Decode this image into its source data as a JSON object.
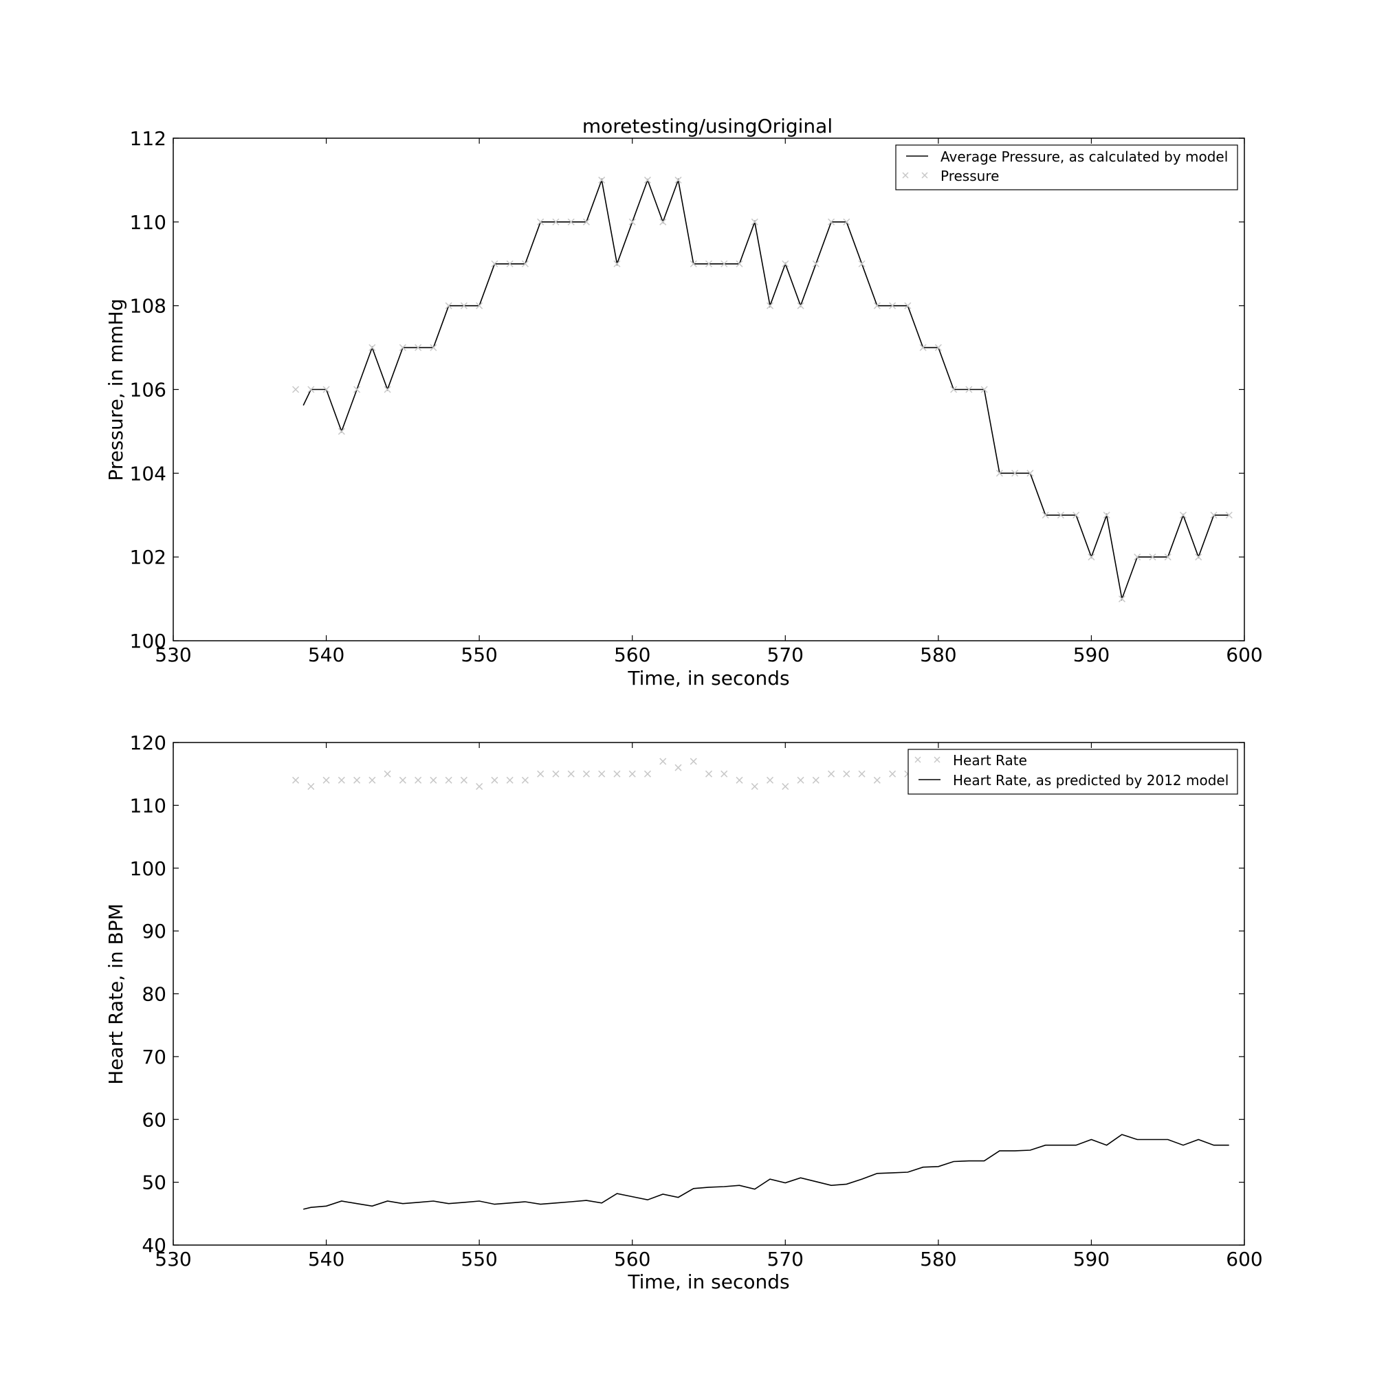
{
  "chart_data": [
    {
      "type": "line",
      "title": "moretesting/usingOriginal",
      "xlabel": "Time, in seconds",
      "ylabel": "Pressure, in mmHg",
      "xlim": [
        530,
        600
      ],
      "ylim": [
        100,
        112
      ],
      "xticks": [
        "530",
        "540",
        "550",
        "560",
        "570",
        "580",
        "590",
        "600"
      ],
      "yticks": [
        "100",
        "102",
        "104",
        "106",
        "108",
        "110",
        "112"
      ],
      "grid": false,
      "legend_position": "top-right",
      "series": [
        {
          "name": "Average Pressure, as calculated by model",
          "style": "line",
          "color": "#000000",
          "points": [
            [
              538.5,
              105.62
            ],
            [
              539,
              106
            ],
            [
              540,
              106
            ],
            [
              541,
              105
            ],
            [
              542,
              106
            ],
            [
              543,
              107
            ],
            [
              544,
              106
            ],
            [
              545,
              107
            ],
            [
              546,
              107
            ],
            [
              547,
              107
            ],
            [
              548,
              108
            ],
            [
              549,
              108
            ],
            [
              550,
              108
            ],
            [
              551,
              109
            ],
            [
              552,
              109
            ],
            [
              553,
              109
            ],
            [
              554,
              110
            ],
            [
              555,
              110
            ],
            [
              556,
              110
            ],
            [
              557,
              110
            ],
            [
              558,
              111
            ],
            [
              559,
              109
            ],
            [
              560,
              110
            ],
            [
              561,
              111
            ],
            [
              562,
              110
            ],
            [
              563,
              111
            ],
            [
              564,
              109
            ],
            [
              565,
              109
            ],
            [
              566,
              109
            ],
            [
              567,
              109
            ],
            [
              568,
              110
            ],
            [
              569,
              108
            ],
            [
              570,
              109
            ],
            [
              571,
              108
            ],
            [
              572,
              109
            ],
            [
              573,
              110
            ],
            [
              574,
              110
            ],
            [
              575,
              109
            ],
            [
              576,
              108
            ],
            [
              577,
              108
            ],
            [
              578,
              108
            ],
            [
              579,
              107
            ],
            [
              580,
              107
            ],
            [
              581,
              106
            ],
            [
              582,
              106
            ],
            [
              583,
              106
            ],
            [
              584,
              104
            ],
            [
              585,
              104
            ],
            [
              586,
              104
            ],
            [
              587,
              103
            ],
            [
              588,
              103
            ],
            [
              589,
              103
            ],
            [
              590,
              102
            ],
            [
              591,
              103
            ],
            [
              592,
              101
            ],
            [
              593,
              102
            ],
            [
              594,
              102
            ],
            [
              595,
              102
            ],
            [
              596,
              103
            ],
            [
              597,
              102
            ],
            [
              598,
              103
            ],
            [
              599,
              103
            ]
          ]
        },
        {
          "name": "Pressure",
          "style": "x-markers",
          "color": "#c8c8c8",
          "points": [
            [
              538,
              106
            ],
            [
              539,
              106
            ],
            [
              540,
              106
            ],
            [
              541,
              105
            ],
            [
              542,
              106
            ],
            [
              543,
              107
            ],
            [
              544,
              106
            ],
            [
              545,
              107
            ],
            [
              546,
              107
            ],
            [
              547,
              107
            ],
            [
              548,
              108
            ],
            [
              549,
              108
            ],
            [
              550,
              108
            ],
            [
              551,
              109
            ],
            [
              552,
              109
            ],
            [
              553,
              109
            ],
            [
              554,
              110
            ],
            [
              555,
              110
            ],
            [
              556,
              110
            ],
            [
              557,
              110
            ],
            [
              558,
              111
            ],
            [
              559,
              109
            ],
            [
              560,
              110
            ],
            [
              561,
              111
            ],
            [
              562,
              110
            ],
            [
              563,
              111
            ],
            [
              564,
              109
            ],
            [
              565,
              109
            ],
            [
              566,
              109
            ],
            [
              567,
              109
            ],
            [
              568,
              110
            ],
            [
              569,
              108
            ],
            [
              570,
              109
            ],
            [
              571,
              108
            ],
            [
              572,
              109
            ],
            [
              573,
              110
            ],
            [
              574,
              110
            ],
            [
              575,
              109
            ],
            [
              576,
              108
            ],
            [
              577,
              108
            ],
            [
              578,
              108
            ],
            [
              579,
              107
            ],
            [
              580,
              107
            ],
            [
              581,
              106
            ],
            [
              582,
              106
            ],
            [
              583,
              106
            ],
            [
              584,
              104
            ],
            [
              585,
              104
            ],
            [
              586,
              104
            ],
            [
              587,
              103
            ],
            [
              588,
              103
            ],
            [
              589,
              103
            ],
            [
              590,
              102
            ],
            [
              591,
              103
            ],
            [
              592,
              101
            ],
            [
              593,
              102
            ],
            [
              594,
              102
            ],
            [
              595,
              102
            ],
            [
              596,
              103
            ],
            [
              597,
              102
            ],
            [
              598,
              103
            ],
            [
              599,
              103
            ]
          ]
        }
      ]
    },
    {
      "type": "line",
      "title": "",
      "xlabel": "Time, in seconds",
      "ylabel": "Heart Rate, in BPM",
      "xlim": [
        530,
        600
      ],
      "ylim": [
        40,
        120
      ],
      "xticks": [
        "530",
        "540",
        "550",
        "560",
        "570",
        "580",
        "590",
        "600"
      ],
      "yticks": [
        "40",
        "50",
        "60",
        "70",
        "80",
        "90",
        "100",
        "110",
        "120"
      ],
      "grid": false,
      "legend_position": "top-right",
      "series": [
        {
          "name": "Heart Rate",
          "style": "x-markers",
          "color": "#c8c8c8",
          "points": [
            [
              538,
              114
            ],
            [
              539,
              113
            ],
            [
              540,
              114
            ],
            [
              541,
              114
            ],
            [
              542,
              114
            ],
            [
              543,
              114
            ],
            [
              544,
              115
            ],
            [
              545,
              114
            ],
            [
              546,
              114
            ],
            [
              547,
              114
            ],
            [
              548,
              114
            ],
            [
              549,
              114
            ],
            [
              550,
              113
            ],
            [
              551,
              114
            ],
            [
              552,
              114
            ],
            [
              553,
              114
            ],
            [
              554,
              115
            ],
            [
              555,
              115
            ],
            [
              556,
              115
            ],
            [
              557,
              115
            ],
            [
              558,
              115
            ],
            [
              559,
              115
            ],
            [
              560,
              115
            ],
            [
              561,
              115
            ],
            [
              562,
              117
            ],
            [
              563,
              116
            ],
            [
              564,
              117
            ],
            [
              565,
              115
            ],
            [
              566,
              115
            ],
            [
              567,
              114
            ],
            [
              568,
              113
            ],
            [
              569,
              114
            ],
            [
              570,
              113
            ],
            [
              571,
              114
            ],
            [
              572,
              114
            ],
            [
              573,
              115
            ],
            [
              574,
              115
            ],
            [
              575,
              115
            ],
            [
              576,
              114
            ],
            [
              577,
              115
            ],
            [
              578,
              115
            ]
          ]
        },
        {
          "name": "Heart Rate, as predicted by 2012 model",
          "style": "line",
          "color": "#000000",
          "points": [
            [
              538.5,
              45.7
            ],
            [
              539,
              46
            ],
            [
              540,
              46.2
            ],
            [
              541,
              47
            ],
            [
              542,
              46.6
            ],
            [
              543,
              46.2
            ],
            [
              544,
              47
            ],
            [
              545,
              46.6
            ],
            [
              546,
              46.8
            ],
            [
              547,
              47
            ],
            [
              548,
              46.6
            ],
            [
              549,
              46.8
            ],
            [
              550,
              47
            ],
            [
              551,
              46.5
            ],
            [
              552,
              46.7
            ],
            [
              553,
              46.9
            ],
            [
              554,
              46.5
            ],
            [
              555,
              46.7
            ],
            [
              556,
              46.9
            ],
            [
              557,
              47.1
            ],
            [
              558,
              46.7
            ],
            [
              559,
              48.2
            ],
            [
              560,
              47.7
            ],
            [
              561,
              47.2
            ],
            [
              562,
              48.1
            ],
            [
              563,
              47.6
            ],
            [
              564,
              49
            ],
            [
              565,
              49.2
            ],
            [
              566,
              49.3
            ],
            [
              567,
              49.5
            ],
            [
              568,
              48.9
            ],
            [
              569,
              50.5
            ],
            [
              570,
              49.9
            ],
            [
              571,
              50.7
            ],
            [
              572,
              50.1
            ],
            [
              573,
              49.5
            ],
            [
              574,
              49.7
            ],
            [
              575,
              50.5
            ],
            [
              576,
              51.4
            ],
            [
              577,
              51.5
            ],
            [
              578,
              51.6
            ],
            [
              579,
              52.4
            ],
            [
              580,
              52.5
            ],
            [
              581,
              53.3
            ],
            [
              582,
              53.4
            ],
            [
              583,
              53.4
            ],
            [
              584,
              55
            ],
            [
              585,
              55
            ],
            [
              586,
              55.1
            ],
            [
              587,
              55.9
            ],
            [
              588,
              55.9
            ],
            [
              589,
              55.9
            ],
            [
              590,
              56.8
            ],
            [
              591,
              55.9
            ],
            [
              592,
              57.6
            ],
            [
              593,
              56.8
            ],
            [
              594,
              56.8
            ],
            [
              595,
              56.8
            ],
            [
              596,
              55.9
            ],
            [
              597,
              56.8
            ],
            [
              598,
              55.9
            ],
            [
              599,
              55.9
            ]
          ]
        }
      ]
    }
  ]
}
